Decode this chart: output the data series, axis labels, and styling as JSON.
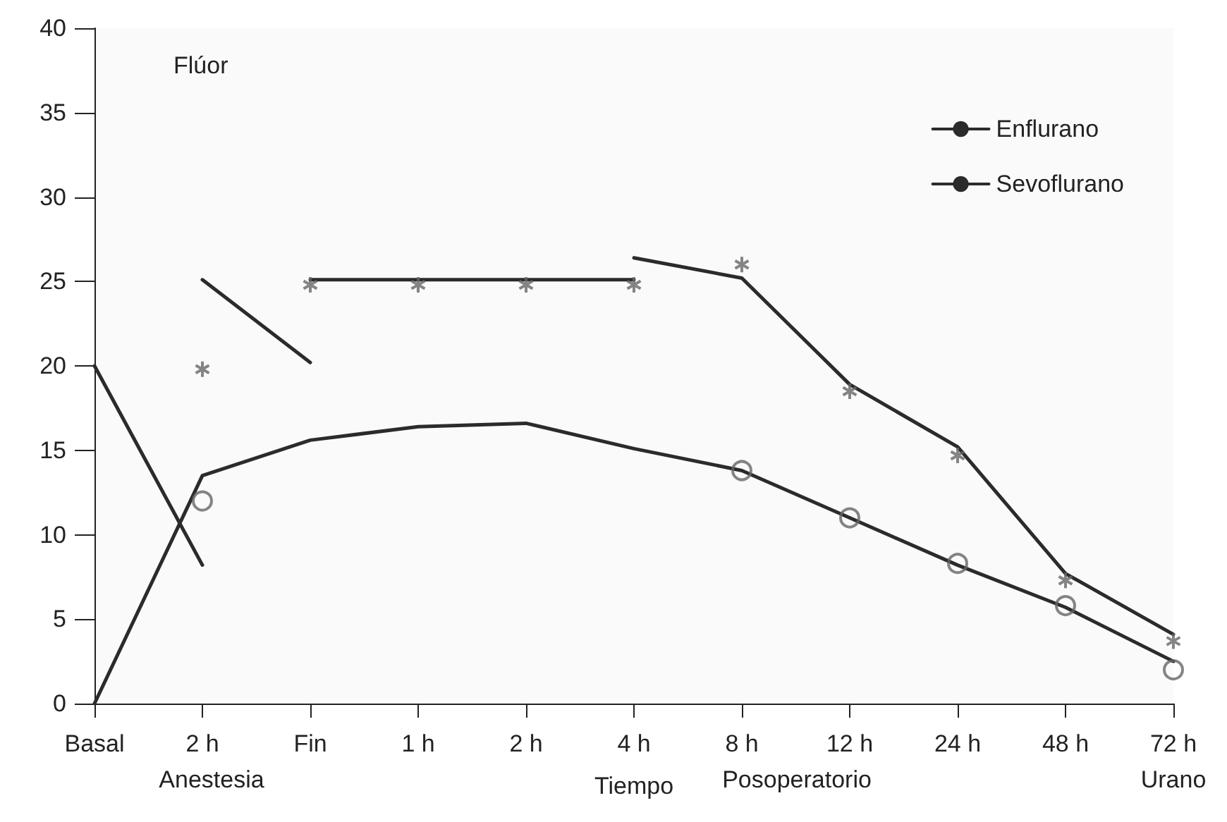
{
  "chart_data": {
    "type": "line",
    "ylabel": "Flúor",
    "xlabel": "Tiempo",
    "annotations": [
      "Anestesia",
      "Posoperatorio",
      "Urano"
    ],
    "categories": [
      "Basal",
      "2 h",
      "Fin",
      "1 h",
      "2 h",
      "4 h",
      "8 h",
      "12 h",
      "24 h",
      "48 h",
      "72 h"
    ],
    "ylim": [
      0,
      40
    ],
    "yticks": [
      0,
      5,
      10,
      15,
      20,
      25,
      30,
      35,
      40
    ],
    "legend": "top right",
    "series": [
      {
        "name": "Enflurano",
        "color": "#2b2b2b",
        "values": [
          0,
          13.5,
          15.6,
          16.4,
          16.6,
          15.1,
          13.8,
          11,
          8.2,
          5.7,
          2.5
        ]
      },
      {
        "name": "Sevoflurano",
        "color": "#2b2b2b",
        "values": [
          null,
          25.1,
          20.2,
          null,
          null,
          26.4,
          25.2,
          18.9,
          15.2,
          7.7,
          4.1
        ]
      },
      {
        "color": "#2b2b2b",
        "values": [
          null,
          null,
          25.1,
          25.1,
          25.1,
          25.1,
          null,
          null,
          null,
          null,
          null
        ]
      },
      {
        "color": "#2b2b2b",
        "values": [
          20,
          8.2,
          null,
          null,
          null,
          null,
          null,
          null,
          null,
          null,
          null
        ]
      },
      {
        "type": "scatter",
        "color": "#666666",
        "marker": "circle",
        "values": [
          null,
          12,
          null,
          null,
          null,
          null,
          13.8,
          11,
          8.3,
          5.8,
          2
        ]
      },
      {
        "type": "scatter",
        "color": "#666666",
        "marker": "cross",
        "values": [
          null,
          19.8,
          24.8,
          24.8,
          24.8,
          24.8,
          26,
          18.5,
          14.7,
          7.3,
          3.7
        ]
      }
    ]
  }
}
